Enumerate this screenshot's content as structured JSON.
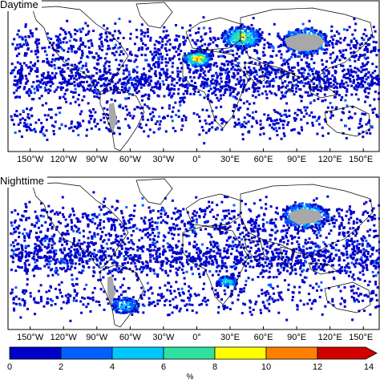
{
  "panels": [
    {
      "id": "day",
      "title": "Daytime"
    },
    {
      "id": "night",
      "title": "Nighttime"
    }
  ],
  "longitude_ticks": [
    "150°W",
    "120°W",
    "90°W",
    "60°W",
    "30°W",
    "0°",
    "30°E",
    "60°E",
    "90°E",
    "120°E",
    "150°E"
  ],
  "colorbar": {
    "tick_labels": [
      "0",
      "2",
      "4",
      "6",
      "8",
      "10",
      "12",
      "14"
    ],
    "unit": "%",
    "colors": [
      "#0000c8",
      "#0060ff",
      "#00c8ff",
      "#30e0a0",
      "#ffff00",
      "#ff8000",
      "#d00000"
    ],
    "extend": "max"
  },
  "colors": {
    "land_outline": "#000000",
    "masked_land": "#a8a8a8",
    "background": "#ffffff"
  }
}
